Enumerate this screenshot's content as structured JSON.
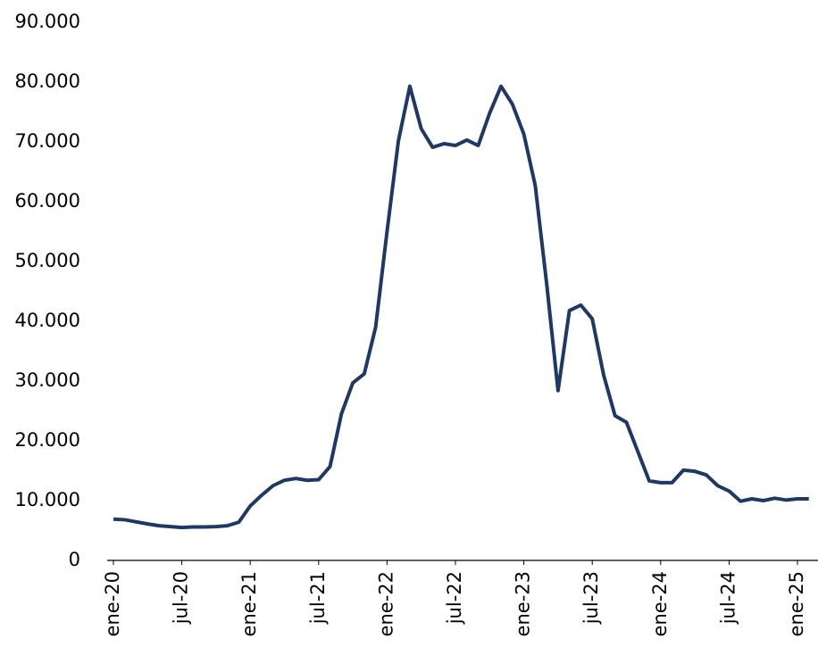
{
  "chart_data": {
    "type": "line",
    "categories": [
      "ene-20",
      null,
      null,
      null,
      null,
      null,
      "jul-20",
      null,
      null,
      null,
      null,
      null,
      "ene-21",
      null,
      null,
      null,
      null,
      null,
      "jul-21",
      null,
      null,
      null,
      null,
      null,
      "ene-22",
      null,
      null,
      null,
      null,
      null,
      "jul-22",
      null,
      null,
      null,
      null,
      null,
      "ene-23",
      null,
      null,
      null,
      null,
      null,
      "jul-23",
      null,
      null,
      null,
      null,
      null,
      "ene-24",
      null,
      null,
      null,
      null,
      null,
      "jul-24",
      null,
      null,
      null,
      null,
      null,
      "ene-25",
      null
    ],
    "series": [
      {
        "color": "#1f3864",
        "values": [
          6900,
          6800,
          6450,
          6100,
          5800,
          5650,
          5500,
          5600,
          5600,
          5650,
          5800,
          6400,
          9100,
          10900,
          12500,
          13400,
          13700,
          13400,
          13500,
          15700,
          24500,
          29700,
          31200,
          39000,
          55000,
          70200,
          79300,
          72200,
          69100,
          69700,
          69400,
          70300,
          69400,
          74800,
          79300,
          76300,
          71300,
          62700,
          46300,
          28400,
          41800,
          42700,
          40400,
          31000,
          24200,
          23100,
          18200,
          13300,
          13000,
          13000,
          15100,
          14900,
          14300,
          12500,
          11600,
          9900,
          10300,
          10000,
          10400,
          10100,
          10300,
          10300
        ]
      }
    ],
    "ylim": [
      0,
      90000
    ],
    "yticks": [
      0,
      {
        "value": 10000,
        "label": "10.000"
      },
      {
        "value": 20000,
        "label": "20.000"
      },
      {
        "value": 30000,
        "label": "30.000"
      },
      {
        "value": 40000,
        "label": "40.000"
      },
      {
        "value": 50000,
        "label": "50.000"
      },
      {
        "value": 60000,
        "label": "60.000"
      },
      {
        "value": 70000,
        "label": "70.000"
      },
      {
        "value": 80000,
        "label": "80.000"
      },
      {
        "value": 90000,
        "label": "90.000"
      }
    ],
    "grid": false
  }
}
